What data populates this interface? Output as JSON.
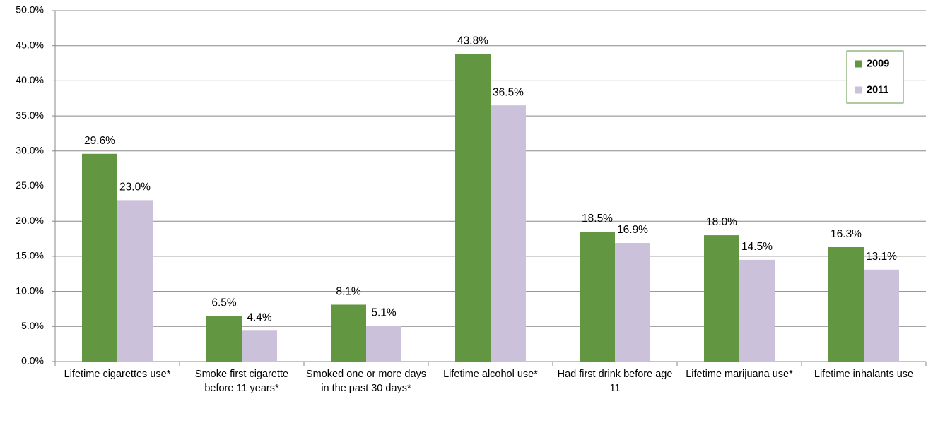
{
  "chart_data": {
    "type": "bar",
    "categories": [
      "Lifetime cigarettes use*",
      "Smoke first cigarette before 11 years*",
      "Smoked one or more days in the past 30 days*",
      "Lifetime alcohol use*",
      "Had first drink before age 11",
      "Lifetime marijuana use*",
      "Lifetime inhalants  use"
    ],
    "series": [
      {
        "name": "2009",
        "color": "#629640",
        "values": [
          29.6,
          6.5,
          8.1,
          43.8,
          18.5,
          18.0,
          16.3
        ],
        "value_labels": [
          "29.6%",
          "6.5%",
          "8.1%",
          "43.8%",
          "18.5%",
          "18.0%",
          "16.3%"
        ]
      },
      {
        "name": "2011",
        "color": "#ccc1da",
        "values": [
          23.0,
          4.4,
          5.1,
          36.5,
          16.9,
          14.5,
          13.1
        ],
        "value_labels": [
          "23.0%",
          "4.4%",
          "5.1%",
          "36.5%",
          "16.9%",
          "14.5%",
          "13.1%"
        ]
      }
    ],
    "ylim": [
      0,
      50
    ],
    "yticks": [
      {
        "value": 0,
        "label": "0.0%"
      },
      {
        "value": 5,
        "label": "5.0%"
      },
      {
        "value": 10,
        "label": "10.0%"
      },
      {
        "value": 15,
        "label": "15.0%"
      },
      {
        "value": 20,
        "label": "20.0%"
      },
      {
        "value": 25,
        "label": "25.0%"
      },
      {
        "value": 30,
        "label": "30.0%"
      },
      {
        "value": 35,
        "label": "35.0%"
      },
      {
        "value": 40,
        "label": "40.0%"
      },
      {
        "value": 45,
        "label": "45.0%"
      },
      {
        "value": 50,
        "label": "50.0%"
      }
    ],
    "grid": true,
    "legend": "upper right"
  }
}
